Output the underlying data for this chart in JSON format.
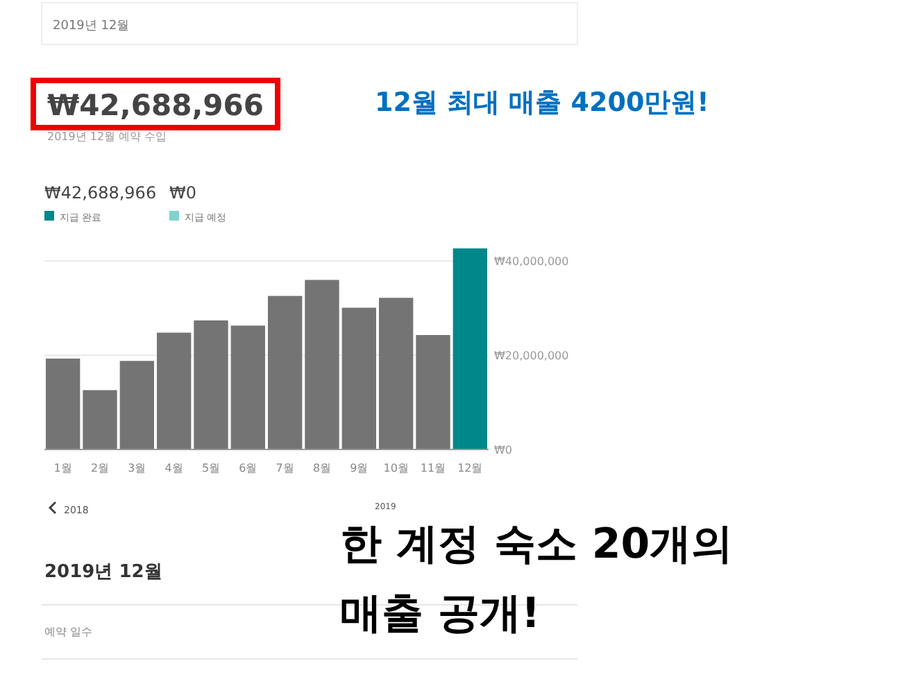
{
  "chart_data": {
    "type": "bar",
    "categories": [
      "1월",
      "2월",
      "3월",
      "4월",
      "5월",
      "6월",
      "7월",
      "8월",
      "9월",
      "10월",
      "11월",
      "12월"
    ],
    "series": [
      {
        "color": "#747474",
        "values": [
          19300000,
          12600000,
          18800000,
          24800000,
          27400000,
          26300000,
          32600000,
          36000000,
          30100000,
          32200000,
          24300000,
          null
        ]
      },
      {
        "name": "지급 완료",
        "color": "#00878a",
        "values": [
          null,
          null,
          null,
          null,
          null,
          null,
          null,
          null,
          null,
          null,
          null,
          42688966
        ]
      },
      {
        "name": "지급 예정",
        "color": "#7fd3cb",
        "values": [
          null,
          null,
          null,
          null,
          null,
          null,
          null,
          null,
          null,
          null,
          null,
          null
        ]
      }
    ],
    "ylim": [
      0,
      43000000
    ],
    "yticks": [
      {
        "value": 0,
        "label": "₩0"
      },
      {
        "value": 20000000,
        "label": "₩20,000,000"
      },
      {
        "value": 40000000,
        "label": "₩40,000,000"
      }
    ],
    "grid": "y",
    "legend": "top left",
    "annotations": [
      "2019년 12월",
      "₩42,688,966",
      "2019년 12월 예약 수입",
      "12월 최대 매출 4200만원!",
      "₩42,688,966",
      "₩0",
      "2018",
      "2019",
      "2019년 12월",
      "예약 일수",
      "한 계정 숙소 20개의",
      "매출 공개!"
    ]
  }
}
